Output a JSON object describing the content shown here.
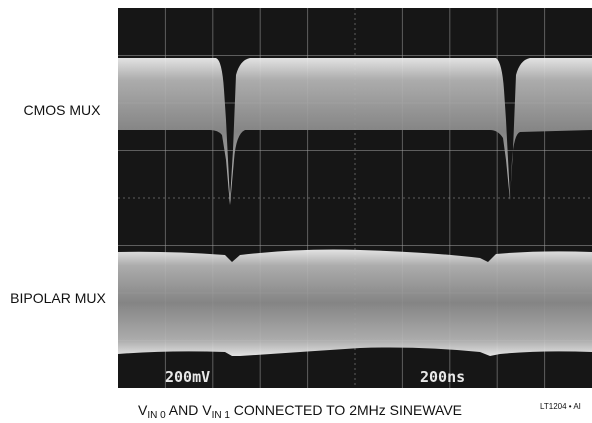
{
  "labels": {
    "top_trace": "CMOS MUX",
    "bottom_trace": "BIPOLAR MUX"
  },
  "scope": {
    "volts_per_div": "200mV",
    "time_per_div": "200ns"
  },
  "caption": {
    "parts": [
      "V",
      "IN 0",
      " AND V",
      "IN 1",
      " CONNECTED TO 2MHz SINEWAVE"
    ]
  },
  "figure_id": "LT1204 • AI"
}
